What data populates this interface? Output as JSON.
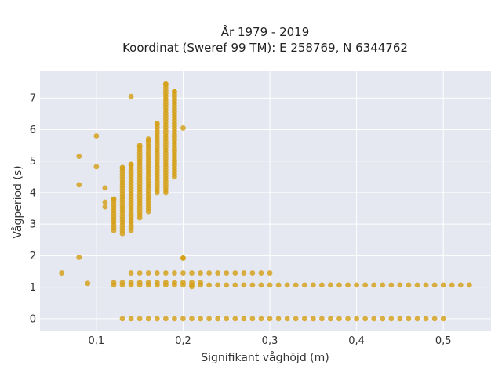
{
  "chart_data": {
    "type": "scatter",
    "title_lines": [
      "År 1979 - 2019",
      "Koordinat (Sweref 99 TM): E 258769, N 6344762"
    ],
    "xlabel": "Signifikant våghöjd (m)",
    "ylabel": "Vågperiod (s)",
    "xlim": [
      0.035,
      0.555
    ],
    "ylim": [
      -0.4,
      7.85
    ],
    "xticks": [
      0.1,
      0.2,
      0.3,
      0.4,
      0.5
    ],
    "xtick_labels": [
      "0,1",
      "0,2",
      "0,3",
      "0,4",
      "0,5"
    ],
    "yticks": [
      0,
      1,
      2,
      3,
      4,
      5,
      6,
      7
    ],
    "ytick_labels": [
      "0",
      "1",
      "2",
      "3",
      "4",
      "5",
      "6",
      "7"
    ],
    "grid": true,
    "legend": "none",
    "marker_color": "#D4A017",
    "background": "#E5E8F0",
    "points": {
      "zero_period_row": {
        "y": 0,
        "x_start": 0.13,
        "x_end": 0.5,
        "x_step": 0.01
      },
      "upper_row": {
        "y": 1.45,
        "x_start": 0.14,
        "x_end": 0.3,
        "x_step": 0.01
      },
      "lower_row": {
        "y": 1.07,
        "x_start": 0.12,
        "x_end": 0.53,
        "x_step": 0.01
      },
      "mid_row": {
        "y": 1.15,
        "x_start": 0.12,
        "x_end": 0.22,
        "x_step": 0.01
      },
      "columns": [
        {
          "x": 0.12,
          "y_min": 2.8,
          "y_max": 3.8
        },
        {
          "x": 0.13,
          "y_min": 2.7,
          "y_max": 4.8
        },
        {
          "x": 0.14,
          "y_min": 2.8,
          "y_max": 4.9
        },
        {
          "x": 0.15,
          "y_min": 3.2,
          "y_max": 5.5
        },
        {
          "x": 0.16,
          "y_min": 3.4,
          "y_max": 5.7
        },
        {
          "x": 0.17,
          "y_min": 4.0,
          "y_max": 6.2
        },
        {
          "x": 0.18,
          "y_min": 4.0,
          "y_max": 7.45
        },
        {
          "x": 0.19,
          "y_min": 4.5,
          "y_max": 7.2
        }
      ],
      "scattered": [
        {
          "x": 0.06,
          "y": 1.45
        },
        {
          "x": 0.08,
          "y": 1.95
        },
        {
          "x": 0.08,
          "y": 4.25
        },
        {
          "x": 0.08,
          "y": 5.15
        },
        {
          "x": 0.09,
          "y": 1.12
        },
        {
          "x": 0.1,
          "y": 5.8
        },
        {
          "x": 0.1,
          "y": 4.82
        },
        {
          "x": 0.11,
          "y": 4.15
        },
        {
          "x": 0.11,
          "y": 3.7
        },
        {
          "x": 0.11,
          "y": 3.55
        },
        {
          "x": 0.14,
          "y": 7.05
        },
        {
          "x": 0.2,
          "y": 6.05
        },
        {
          "x": 0.2,
          "y": 1.93
        },
        {
          "x": 0.2,
          "y": 1.92
        },
        {
          "x": 0.21,
          "y": 1.02
        }
      ]
    }
  }
}
